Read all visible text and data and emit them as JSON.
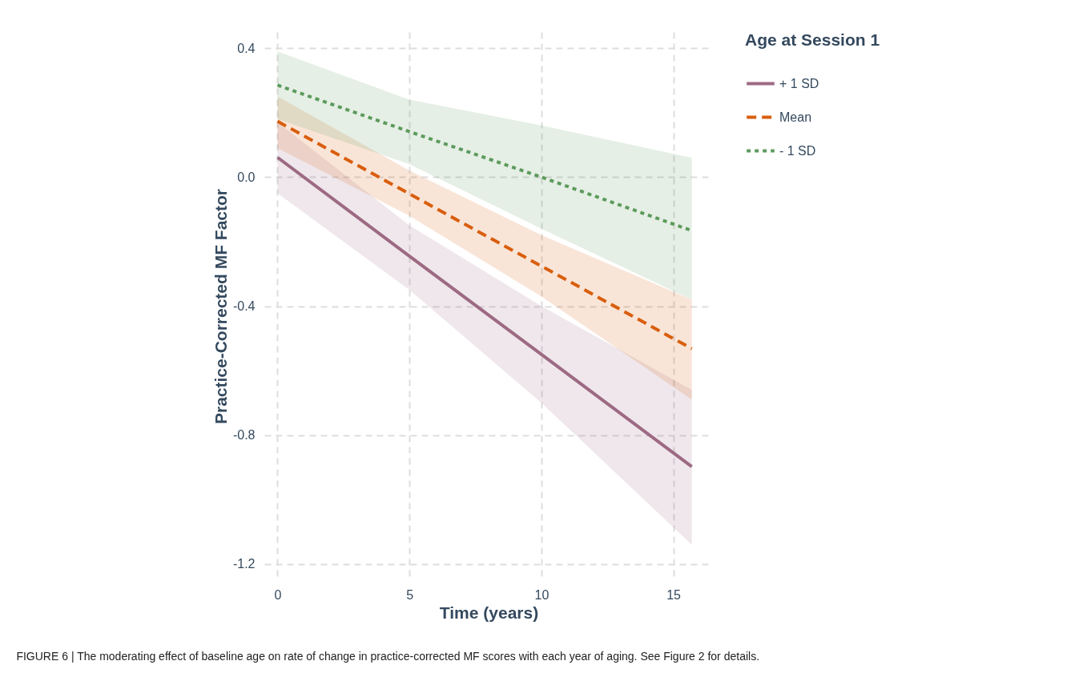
{
  "chart_data": {
    "type": "line",
    "xlabel": "Time (years)",
    "ylabel": "Practice-Corrected MF Factor",
    "legend_title": "Age at Session 1",
    "x": [
      0,
      5,
      10,
      15.7
    ],
    "series": [
      {
        "name": "+ 1 SD",
        "color": "#9e6a84",
        "line_style": "solid",
        "values": [
          0.061,
          -0.245,
          -0.55,
          -0.898
        ],
        "lower": [
          -0.05,
          -0.35,
          -0.7,
          -1.14
        ],
        "upper": [
          0.17,
          -0.15,
          -0.4,
          -0.66
        ]
      },
      {
        "name": "Mean",
        "color": "#d95f0e",
        "line_style": "dashed",
        "values": [
          0.173,
          -0.052,
          -0.276,
          -0.532
        ],
        "lower": [
          0.09,
          -0.12,
          -0.37,
          -0.69
        ],
        "upper": [
          0.25,
          0.02,
          -0.18,
          -0.38
        ]
      },
      {
        "name": "- 1 SD",
        "color": "#5e9a5e",
        "line_style": "dotted",
        "values": [
          0.285,
          0.141,
          0.0,
          -0.166
        ],
        "lower": [
          0.18,
          0.04,
          -0.16,
          -0.38
        ],
        "upper": [
          0.39,
          0.24,
          0.16,
          0.06
        ]
      }
    ],
    "xlim": [
      -0.5,
      16.5
    ],
    "xticks": [
      0,
      5,
      10,
      15
    ],
    "ylim": [
      -1.25,
      0.45
    ],
    "yticks": [
      0.4,
      {
        "value": 0,
        "label": "0.0"
      },
      -0.4,
      -0.8,
      -1.2
    ],
    "grid": true,
    "legend": "right",
    "annotations": [
      "FIGURE 6 | The moderating effect of baseline age on rate of change in practice-corrected MF scores with each year of aging. See Figure 2 for details."
    ]
  }
}
